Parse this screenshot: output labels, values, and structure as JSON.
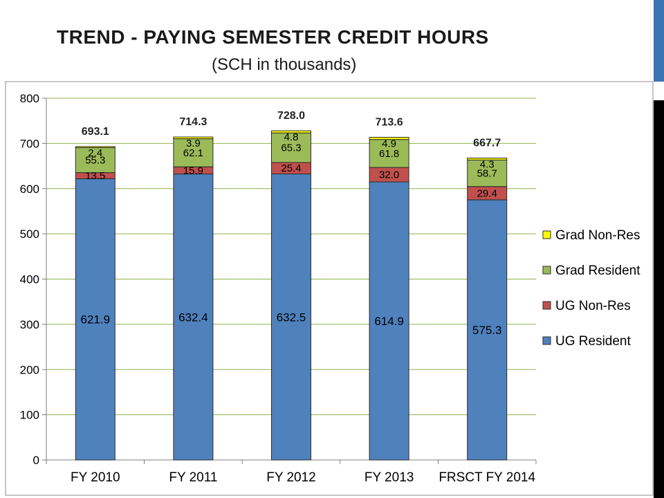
{
  "slide": {
    "title": "TREND - PAYING SEMESTER CREDIT HOURS",
    "subtitle": "(SCH in thousands)"
  },
  "colors": {
    "accent_blue": "#3a73b4",
    "accent_black": "#000000"
  },
  "chart_data": {
    "type": "bar",
    "stacked": true,
    "title": "",
    "xlabel": "",
    "ylabel": "",
    "ylim": [
      0,
      800
    ],
    "yticks": [
      0,
      100,
      200,
      300,
      400,
      500,
      600,
      700,
      800
    ],
    "grid": true,
    "legend_position": "right",
    "categories": [
      "FY 2010",
      "FY 2011",
      "FY 2012",
      "FY 2013",
      "FRSCT FY 2014"
    ],
    "series": [
      {
        "name": "UG Resident",
        "color": "#4f81bd",
        "values": [
          621.9,
          632.4,
          632.5,
          614.9,
          575.3
        ],
        "labels": [
          "621.9",
          "632.4",
          "632.5",
          "614.9",
          "575.3"
        ]
      },
      {
        "name": "UG Non-Res",
        "color": "#c0504d",
        "values": [
          13.5,
          15.9,
          25.4,
          32.0,
          29.4
        ],
        "labels": [
          "13.5",
          "15.9",
          "25.4",
          "32.0",
          "29.4"
        ]
      },
      {
        "name": "Grad Resident",
        "color": "#9bbb59",
        "values": [
          55.3,
          62.1,
          65.3,
          61.8,
          58.7
        ],
        "labels": [
          "55.3",
          "62.1",
          "65.3",
          "61.8",
          "58.7"
        ]
      },
      {
        "name": "Grad Non-Res",
        "color": "#ffff00",
        "values": [
          2.4,
          3.9,
          4.8,
          4.9,
          4.3
        ],
        "labels": [
          "2.4",
          "3.9",
          "4.8",
          "4.9",
          "4.3"
        ]
      }
    ],
    "totals": [
      "693.1",
      "714.3",
      "728.0",
      "713.6",
      "667.7"
    ],
    "legend_order": [
      "Grad Non-Res",
      "Grad Resident",
      "UG Non-Res",
      "UG Resident"
    ]
  }
}
